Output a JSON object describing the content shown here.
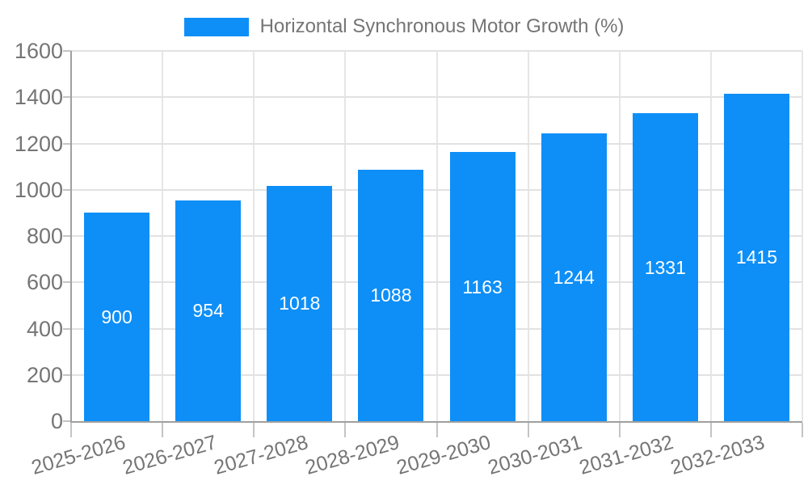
{
  "legend": {
    "label": "Horizontal Synchronous Motor Growth (%)"
  },
  "chart_data": {
    "type": "bar",
    "title": "Horizontal Synchronous Motor Growth (%)",
    "categories": [
      "2025-2026",
      "2026-2027",
      "2027-2028",
      "2028-2029",
      "2029-2030",
      "2030-2031",
      "2031-2032",
      "2032-2033"
    ],
    "values": [
      900,
      954,
      1018,
      1088,
      1163,
      1244,
      1331,
      1415
    ],
    "xlabel": "",
    "ylabel": "",
    "ylim": [
      0,
      1600
    ],
    "ytick_step": 200,
    "grid": true,
    "legend_position": "top",
    "bar_value_labels": true,
    "colors": {
      "bar": "#0E8FF7",
      "grid_h": "#E2E2E2",
      "grid_v": "#E6E6E6",
      "axis": "#A0A0A0",
      "tick": "#C4C4C4",
      "text": "#757575",
      "bar_label": "#FFFFFF",
      "background": "#FFFFFF"
    }
  }
}
